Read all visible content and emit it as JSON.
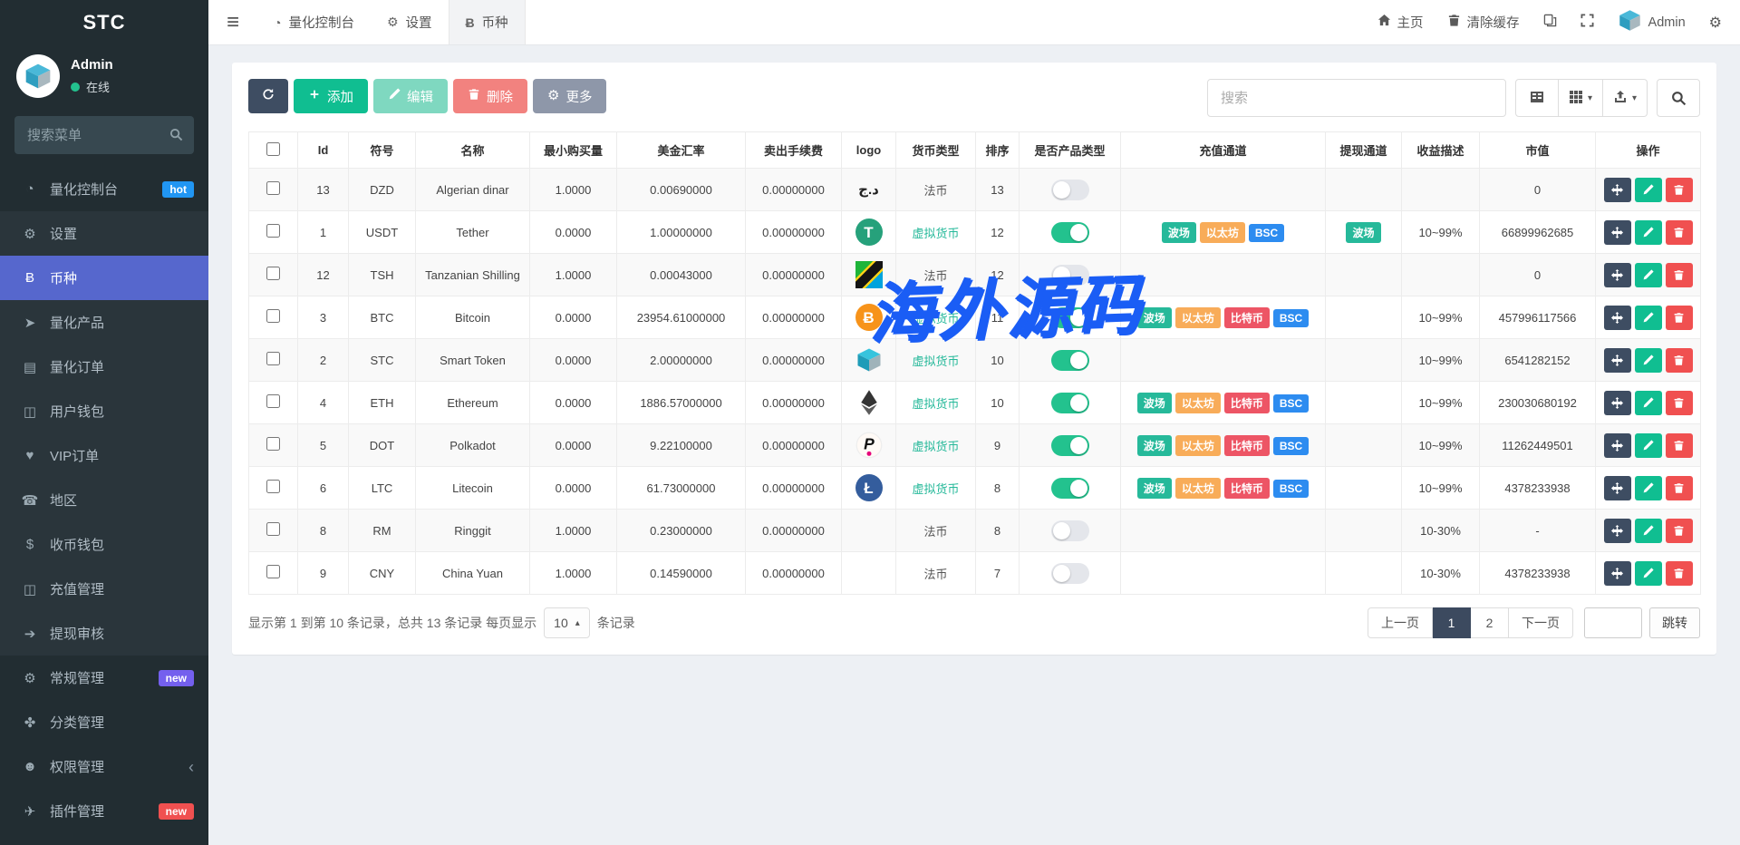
{
  "app": {
    "brand": "STC"
  },
  "colors": {
    "sidebar_active": "#5667cd",
    "toolbar_dark": "#3e4d62",
    "toolbar_green": "#10be91",
    "toolbar_green_light": "#7fd8c0",
    "toolbar_red_light": "#f2827f",
    "toolbar_gray": "#8e97a9",
    "badge_hot": "#2196f3",
    "badge_new_purple": "#7460ee",
    "badge_new_red": "#f05050",
    "virtual_currency_text": "#26b99a",
    "toggle_on": "#23c28e",
    "watermark_blue": "#1a5df5"
  },
  "sidebar": {
    "user": {
      "name": "Admin",
      "status": "在线"
    },
    "search_placeholder": "搜索菜单",
    "items": [
      {
        "key": "quant-console",
        "icon": "dashboard-icon",
        "label": "量化控制台",
        "badge": "hot",
        "badge_color": "#2196f3",
        "shaded": false
      },
      {
        "key": "settings",
        "icon": "gear-icon",
        "label": "设置",
        "shaded": true
      },
      {
        "key": "currency",
        "icon": "bitcoin-icon",
        "label": "币种",
        "active": true,
        "shaded": true
      },
      {
        "key": "quant-product",
        "icon": "plane-icon",
        "label": "量化产品",
        "shaded": true
      },
      {
        "key": "quant-order",
        "icon": "book-icon",
        "label": "量化订单",
        "shaded": true
      },
      {
        "key": "user-wallet",
        "icon": "money-icon",
        "label": "用户钱包",
        "shaded": true
      },
      {
        "key": "vip-order",
        "icon": "vip-icon",
        "label": "VIP订单",
        "shaded": true
      },
      {
        "key": "region",
        "icon": "phone-icon",
        "label": "地区",
        "shaded": true
      },
      {
        "key": "coin-wallet",
        "icon": "dollar-icon",
        "label": "收币钱包",
        "shaded": true
      },
      {
        "key": "recharge-manage",
        "icon": "money-icon",
        "label": "充值管理",
        "shaded": true
      },
      {
        "key": "withdraw-audit",
        "icon": "arrow-circle-icon",
        "label": "提现审核",
        "shaded": true
      },
      {
        "key": "general-manage",
        "icon": "gears-icon",
        "label": "常规管理",
        "badge": "new",
        "badge_color": "#7460ee",
        "shaded": false
      },
      {
        "key": "category-manage",
        "icon": "leaf-icon",
        "label": "分类管理",
        "shaded": false
      },
      {
        "key": "permission-manage",
        "icon": "users-icon",
        "label": "权限管理",
        "chevron": "‹",
        "shaded": false
      },
      {
        "key": "plugin-manage",
        "icon": "plugin-icon",
        "label": "插件管理",
        "badge": "new",
        "badge_color": "#f05050",
        "shaded": false
      }
    ]
  },
  "topnav": {
    "tabs": [
      {
        "key": "quant-console",
        "icon": "dashboard-icon",
        "label": "量化控制台"
      },
      {
        "key": "settings",
        "icon": "gear-icon",
        "label": "设置"
      },
      {
        "key": "currency",
        "icon": "bitcoin-icon",
        "label": "币种",
        "active": true
      }
    ],
    "right": [
      {
        "key": "home",
        "icon": "home-icon",
        "label": "主页"
      },
      {
        "key": "clear-cache",
        "icon": "trash-icon",
        "label": "清除缓存"
      },
      {
        "key": "translate",
        "icon": "translate-icon",
        "label": ""
      },
      {
        "key": "fullscreen",
        "icon": "expand-icon",
        "label": ""
      },
      {
        "key": "admin-user",
        "icon": "cube-avatar",
        "label": "Admin"
      },
      {
        "key": "nav-settings",
        "icon": "gears-icon",
        "label": ""
      }
    ]
  },
  "toolbar": {
    "buttons": [
      {
        "key": "refresh",
        "icon": "refresh-icon",
        "label": "",
        "style": "dark"
      },
      {
        "key": "add",
        "icon": "plus-icon",
        "label": "添加",
        "style": "green"
      },
      {
        "key": "edit",
        "icon": "pencil-icon",
        "label": "编辑",
        "style": "green-light"
      },
      {
        "key": "delete",
        "icon": "trash-icon",
        "label": "删除",
        "style": "red-light"
      },
      {
        "key": "more",
        "icon": "gear-glyph",
        "label": "更多",
        "style": "gray"
      }
    ],
    "search_placeholder": "搜索",
    "view_buttons": [
      {
        "key": "toggle-view",
        "icon": "columns-icon",
        "caret": false
      },
      {
        "key": "columns",
        "icon": "grid-icon",
        "caret": true
      },
      {
        "key": "export",
        "icon": "export-icon",
        "caret": true
      }
    ]
  },
  "table": {
    "headers": [
      {
        "key": "check",
        "label": ""
      },
      {
        "key": "id",
        "label": "Id"
      },
      {
        "key": "symbol",
        "label": "符号"
      },
      {
        "key": "name",
        "label": "名称"
      },
      {
        "key": "min-buy",
        "label": "最小购买量"
      },
      {
        "key": "usd-rate",
        "label": "美金汇率"
      },
      {
        "key": "sell-fee",
        "label": "卖出手续费"
      },
      {
        "key": "logo",
        "label": "logo"
      },
      {
        "key": "currency-type",
        "label": "货币类型"
      },
      {
        "key": "sort",
        "label": "排序"
      },
      {
        "key": "is-product",
        "label": "是否产品类型"
      },
      {
        "key": "recharge-channel",
        "label": "充值通道"
      },
      {
        "key": "withdraw-channel",
        "label": "提现通道"
      },
      {
        "key": "profit-desc",
        "label": "收益描述"
      },
      {
        "key": "market-value",
        "label": "市值"
      },
      {
        "key": "actions",
        "label": "操作"
      }
    ],
    "channel_colors": {
      "波场": "#26b99a",
      "以太坊": "#f8ac59",
      "比特币": "#ed5565",
      "BSC": "#2d8cf0"
    },
    "rows": [
      {
        "id": "13",
        "symbol": "DZD",
        "name": "Algerian dinar",
        "min_buy": "1.0000",
        "usd_rate": "0.00690000",
        "sell_fee": "0.00000000",
        "logo": "dzd",
        "currency_type": "法币",
        "virtual": false,
        "sort": "13",
        "enabled": false,
        "recharge": [],
        "withdraw": [],
        "profit_desc": "",
        "market_value": "0"
      },
      {
        "id": "1",
        "symbol": "USDT",
        "name": "Tether",
        "min_buy": "0.0000",
        "usd_rate": "1.00000000",
        "sell_fee": "0.00000000",
        "logo": "usdt",
        "currency_type": "虚拟货币",
        "virtual": true,
        "sort": "12",
        "enabled": true,
        "recharge": [
          "波场",
          "以太坊",
          "BSC"
        ],
        "withdraw": [
          "波场"
        ],
        "profit_desc": "10~99%",
        "market_value": "66899962685"
      },
      {
        "id": "12",
        "symbol": "TSH",
        "name": "Tanzanian Shilling",
        "min_buy": "1.0000",
        "usd_rate": "0.00043000",
        "sell_fee": "0.00000000",
        "logo": "tsh",
        "currency_type": "法币",
        "virtual": false,
        "sort": "12",
        "enabled": false,
        "recharge": [],
        "withdraw": [],
        "profit_desc": "",
        "market_value": "0"
      },
      {
        "id": "3",
        "symbol": "BTC",
        "name": "Bitcoin",
        "min_buy": "0.0000",
        "usd_rate": "23954.61000000",
        "sell_fee": "0.00000000",
        "logo": "btc",
        "currency_type": "虚拟货币",
        "virtual": true,
        "sort": "11",
        "enabled": true,
        "recharge": [
          "波场",
          "以太坊",
          "比特币",
          "BSC"
        ],
        "withdraw": [],
        "profit_desc": "10~99%",
        "market_value": "457996117566"
      },
      {
        "id": "2",
        "symbol": "STC",
        "name": "Smart Token",
        "min_buy": "0.0000",
        "usd_rate": "2.00000000",
        "sell_fee": "0.00000000",
        "logo": "stc",
        "currency_type": "虚拟货币",
        "virtual": true,
        "sort": "10",
        "enabled": true,
        "recharge": [],
        "withdraw": [],
        "profit_desc": "10~99%",
        "market_value": "6541282152"
      },
      {
        "id": "4",
        "symbol": "ETH",
        "name": "Ethereum",
        "min_buy": "0.0000",
        "usd_rate": "1886.57000000",
        "sell_fee": "0.00000000",
        "logo": "eth",
        "currency_type": "虚拟货币",
        "virtual": true,
        "sort": "10",
        "enabled": true,
        "recharge": [
          "波场",
          "以太坊",
          "比特币",
          "BSC"
        ],
        "withdraw": [],
        "profit_desc": "10~99%",
        "market_value": "230030680192"
      },
      {
        "id": "5",
        "symbol": "DOT",
        "name": "Polkadot",
        "min_buy": "0.0000",
        "usd_rate": "9.22100000",
        "sell_fee": "0.00000000",
        "logo": "dot",
        "currency_type": "虚拟货币",
        "virtual": true,
        "sort": "9",
        "enabled": true,
        "recharge": [
          "波场",
          "以太坊",
          "比特币",
          "BSC"
        ],
        "withdraw": [],
        "profit_desc": "10~99%",
        "market_value": "11262449501"
      },
      {
        "id": "6",
        "symbol": "LTC",
        "name": "Litecoin",
        "min_buy": "0.0000",
        "usd_rate": "61.73000000",
        "sell_fee": "0.00000000",
        "logo": "ltc",
        "currency_type": "虚拟货币",
        "virtual": true,
        "sort": "8",
        "enabled": true,
        "recharge": [
          "波场",
          "以太坊",
          "比特币",
          "BSC"
        ],
        "withdraw": [],
        "profit_desc": "10~99%",
        "market_value": "4378233938"
      },
      {
        "id": "8",
        "symbol": "RM",
        "name": "Ringgit",
        "min_buy": "1.0000",
        "usd_rate": "0.23000000",
        "sell_fee": "0.00000000",
        "logo": "",
        "currency_type": "法币",
        "virtual": false,
        "sort": "8",
        "enabled": false,
        "recharge": [],
        "withdraw": [],
        "profit_desc": "10-30%",
        "market_value": "-"
      },
      {
        "id": "9",
        "symbol": "CNY",
        "name": "China Yuan",
        "min_buy": "1.0000",
        "usd_rate": "0.14590000",
        "sell_fee": "0.00000000",
        "logo": "",
        "currency_type": "法币",
        "virtual": false,
        "sort": "7",
        "enabled": false,
        "recharge": [],
        "withdraw": [],
        "profit_desc": "10-30%",
        "market_value": "4378233938"
      }
    ]
  },
  "pagination": {
    "info_prefix": "显示第 1 到第 10 条记录，总共 13 条记录 每页显示",
    "page_size": "10",
    "info_suffix": "条记录",
    "prev": "上一页",
    "pages": [
      "1",
      "2"
    ],
    "active_page": "1",
    "next": "下一页",
    "jump": "跳转"
  },
  "watermark": {
    "text": "海外源码"
  }
}
